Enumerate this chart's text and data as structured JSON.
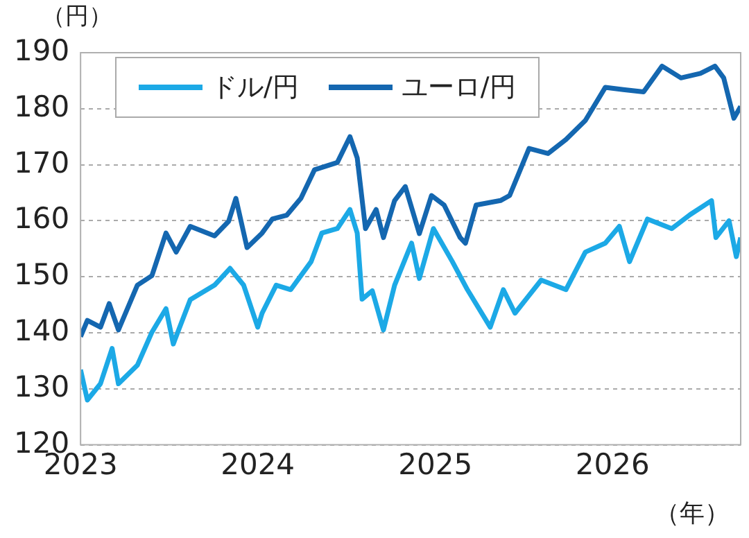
{
  "chart_data": {
    "type": "line",
    "ylabel": "（円）",
    "xlabel": "（年）",
    "xlim": [
      "2023-01-01",
      "2026-09-22"
    ],
    "xticks": [
      "2023",
      "2024",
      "2025",
      "2026"
    ],
    "ylim": [
      120,
      190
    ],
    "yticks": [
      120,
      130,
      140,
      150,
      160,
      170,
      180,
      190
    ],
    "grid": "y",
    "legend": "top left",
    "marker": "none",
    "line_style": "solid",
    "series": [
      {
        "name": "ドル/円",
        "color": "#1ca9e6",
        "x": [
          "2023-01-01",
          "2023-01-15",
          "2023-02-11",
          "2023-03-07",
          "2023-03-20",
          "2023-04-28",
          "2023-05-28",
          "2023-06-26",
          "2023-07-11",
          "2023-08-15",
          "2023-10-04",
          "2023-11-05",
          "2023-12-03",
          "2024-01-01",
          "2024-01-10",
          "2024-02-08",
          "2024-03-09",
          "2024-04-20",
          "2024-05-12",
          "2024-06-13",
          "2024-07-09",
          "2024-07-24",
          "2024-08-03",
          "2024-08-24",
          "2024-09-16",
          "2024-10-09",
          "2024-11-13",
          "2024-11-29",
          "2024-12-28",
          "2025-02-05",
          "2025-03-08",
          "2025-04-24",
          "2025-05-21",
          "2025-06-14",
          "2025-08-07",
          "2025-09-27",
          "2025-11-06",
          "2025-12-17",
          "2026-01-15",
          "2026-02-05",
          "2026-03-14",
          "2026-05-03",
          "2026-06-10",
          "2026-07-24",
          "2026-08-02",
          "2026-08-29",
          "2026-09-13",
          "2026-09-22"
        ],
        "values": [
          133.4,
          128,
          130.9,
          137.2,
          130.9,
          134.2,
          140.1,
          144.3,
          138,
          145.9,
          148.5,
          151.5,
          148.5,
          141,
          143.5,
          148.5,
          147.7,
          152.7,
          157.8,
          158.6,
          162,
          157.8,
          146,
          147.5,
          140.5,
          148.5,
          156,
          149.7,
          158.6,
          152.7,
          147.7,
          141,
          147.7,
          143.5,
          149.4,
          147.7,
          154.4,
          156,
          159,
          152.7,
          160.3,
          158.6,
          161.1,
          163.6,
          157,
          160,
          153.6,
          157
        ]
      },
      {
        "name": "ユーロ/円",
        "color": "#1467b0",
        "x": [
          "2023-01-01",
          "2023-01-15",
          "2023-02-11",
          "2023-03-01",
          "2023-03-20",
          "2023-04-28",
          "2023-05-28",
          "2023-06-26",
          "2023-07-17",
          "2023-08-15",
          "2023-10-04",
          "2023-11-02",
          "2023-11-17",
          "2023-12-10",
          "2024-01-10",
          "2024-01-31",
          "2024-03-01",
          "2024-03-30",
          "2024-04-27",
          "2024-06-13",
          "2024-07-09",
          "2024-07-24",
          "2024-08-10",
          "2024-09-01",
          "2024-09-16",
          "2024-10-09",
          "2024-10-31",
          "2024-11-29",
          "2024-12-24",
          "2025-01-19",
          "2025-02-21",
          "2025-03-04",
          "2025-03-26",
          "2025-05-15",
          "2025-06-03",
          "2025-07-13",
          "2025-08-21",
          "2025-09-27",
          "2025-11-06",
          "2025-12-17",
          "2026-01-23",
          "2026-03-06",
          "2026-04-13",
          "2026-05-22",
          "2026-07-01",
          "2026-07-31",
          "2026-08-18",
          "2026-09-08",
          "2026-09-22"
        ],
        "values": [
          139.3,
          142.2,
          141,
          145.2,
          140.5,
          148.5,
          150.2,
          157.8,
          154.4,
          159,
          157.3,
          159.9,
          164,
          155.2,
          157.8,
          160.3,
          161,
          164,
          169.1,
          170.4,
          175,
          171.2,
          158.6,
          162,
          157,
          163.6,
          166.1,
          157.7,
          164.5,
          162.8,
          157,
          156,
          162.8,
          163.6,
          164.5,
          172.9,
          172,
          174.5,
          177.9,
          183.8,
          183.4,
          183,
          187.6,
          185.5,
          186.3,
          187.6,
          185.5,
          178.3,
          180.4
        ]
      }
    ]
  }
}
